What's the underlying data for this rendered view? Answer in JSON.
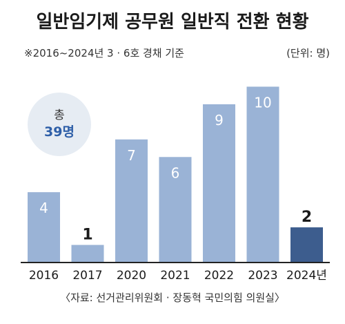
{
  "chart_data": {
    "type": "bar",
    "title": "일반임기제 공무원 일반직 전환 현황",
    "subtitle": "※2016~2024년 3 · 6호 경채 기준",
    "unit_label": "(단위: 명)",
    "categories": [
      "2016",
      "2017",
      "2020",
      "2021",
      "2022",
      "2023",
      "2024년"
    ],
    "values": [
      4,
      1,
      7,
      6,
      9,
      10,
      2
    ],
    "highlight_index": 6,
    "ylim": [
      0,
      11
    ],
    "grid": false,
    "total": {
      "label": "총",
      "value": "39명"
    },
    "source": "〈자료: 선거관리위원회 · 장동혁 국민의힘 의원실〉",
    "colors": {
      "bar": "#9ab3d6",
      "highlight": "#3d5d8e",
      "baseline": "#222222",
      "circle": "#e6ecf3",
      "total_value": "#2e5fa8"
    }
  }
}
